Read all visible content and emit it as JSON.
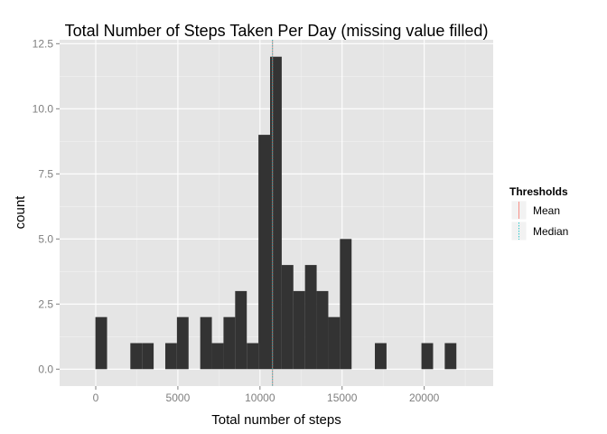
{
  "chart_data": {
    "type": "bar",
    "title": "Total Number of Steps Taken Per Day (missing value filled)",
    "xlabel": "Total number of steps",
    "ylabel": "count",
    "xlim": [
      -2200,
      24200
    ],
    "ylim": [
      -0.65,
      12.65
    ],
    "x_ticks": [
      0,
      5000,
      10000,
      15000,
      20000
    ],
    "x_tick_labels": [
      "0",
      "5000",
      "10000",
      "15000",
      "20000"
    ],
    "y_ticks": [
      0,
      2.5,
      5,
      7.5,
      10,
      12.5
    ],
    "y_tick_labels": [
      "0.0",
      "2.5",
      "5.0",
      "7.5",
      "10.0",
      "12.5"
    ],
    "grid": true,
    "bars": [
      {
        "x0": -20,
        "x1": 689,
        "count": 2
      },
      {
        "x0": 2107,
        "x1": 2816,
        "count": 1
      },
      {
        "x0": 2816,
        "x1": 3525,
        "count": 1
      },
      {
        "x0": 4234,
        "x1": 4943,
        "count": 1
      },
      {
        "x0": 4943,
        "x1": 5652,
        "count": 2
      },
      {
        "x0": 6361,
        "x1": 7070,
        "count": 2
      },
      {
        "x0": 7070,
        "x1": 7779,
        "count": 1
      },
      {
        "x0": 7779,
        "x1": 8488,
        "count": 2
      },
      {
        "x0": 8488,
        "x1": 9197,
        "count": 3
      },
      {
        "x0": 9197,
        "x1": 9906,
        "count": 1
      },
      {
        "x0": 9906,
        "x1": 10615,
        "count": 9
      },
      {
        "x0": 10615,
        "x1": 11324,
        "count": 12
      },
      {
        "x0": 11324,
        "x1": 12033,
        "count": 4
      },
      {
        "x0": 12033,
        "x1": 12742,
        "count": 3
      },
      {
        "x0": 12742,
        "x1": 13451,
        "count": 4
      },
      {
        "x0": 13451,
        "x1": 14160,
        "count": 3
      },
      {
        "x0": 14160,
        "x1": 14869,
        "count": 2
      },
      {
        "x0": 14869,
        "x1": 15578,
        "count": 5
      },
      {
        "x0": 16996,
        "x1": 17705,
        "count": 1
      },
      {
        "x0": 19832,
        "x1": 20541,
        "count": 1
      },
      {
        "x0": 21250,
        "x1": 21959,
        "count": 1
      }
    ],
    "thresholds": [
      {
        "name": "Mean",
        "value": 10766,
        "color": "#f8766d",
        "dash": "solid"
      },
      {
        "name": "Median",
        "value": 10766,
        "color": "#00bfc4",
        "dash": "dotted"
      }
    ],
    "legend": {
      "title": "Thresholds",
      "position": "right"
    },
    "colors": {
      "panel": "#e5e5e5",
      "grid": "#ffffff",
      "bar": "#333333"
    }
  }
}
